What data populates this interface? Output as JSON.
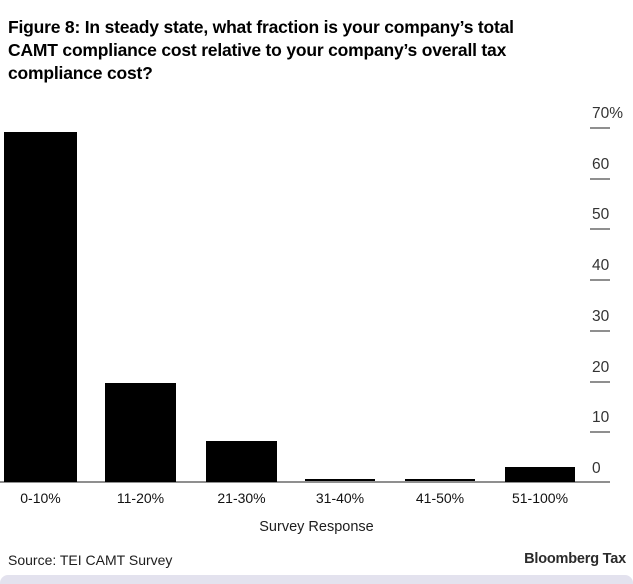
{
  "title_lines": [
    "Figure 8: In steady state, what fraction is your company’s total",
    "CAMT compliance cost relative to your company’s overall tax",
    "compliance cost?"
  ],
  "chart_data": {
    "type": "bar",
    "title": "Figure 8: In steady state, what fraction is your company’s total CAMT compliance cost relative to your company’s overall tax compliance cost?",
    "categories": [
      "0-10%",
      "11-20%",
      "21-30%",
      "31-40%",
      "41-50%",
      "51-100%"
    ],
    "values": [
      69,
      19.5,
      8,
      0,
      0,
      3
    ],
    "xlabel": "Survey Response",
    "ylabel": "",
    "ylim": [
      0,
      70
    ],
    "ytick_labels": [
      "70%",
      "60",
      "50",
      "40",
      "30",
      "20",
      "10",
      "0"
    ],
    "ytick_values": [
      70,
      60,
      50,
      40,
      30,
      20,
      10,
      0
    ],
    "bar_color": "#000000",
    "axis_color": "#8f8f8f",
    "grid": false,
    "legend": "none",
    "yaxis_side": "right"
  },
  "footer": {
    "source": "Source: TEI CAMT Survey",
    "brand": "Bloomberg Tax"
  },
  "accent_color": "#e3e2ee"
}
